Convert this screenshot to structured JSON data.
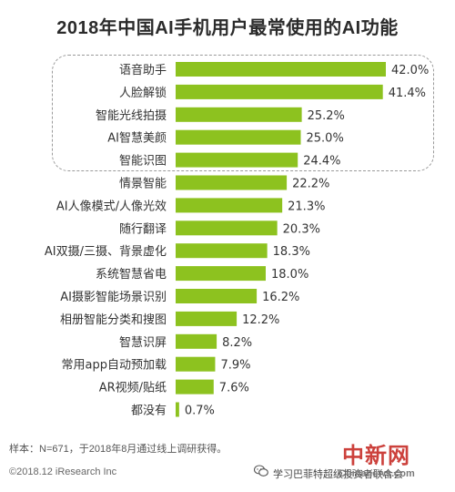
{
  "chart_data": {
    "type": "bar",
    "orientation": "horizontal",
    "title": "2018年中国AI手机用户最常使用的AI功能",
    "categories": [
      "语音助手",
      "人脸解锁",
      "智能光线拍摄",
      "AI智慧美颜",
      "智能识图",
      "情景智能",
      "AI人像模式/人像光效",
      "随行翻译",
      "AI双摄/三摄、背景虚化",
      "系统智慧省电",
      "AI摄影智能场景识别",
      "相册智能分类和搜图",
      "智慧识屏",
      "常用app自动预加载",
      "AR视频/贴纸",
      "都没有"
    ],
    "values": [
      42.0,
      41.4,
      25.2,
      25.0,
      24.4,
      22.2,
      21.3,
      20.3,
      18.3,
      18.0,
      16.2,
      12.2,
      8.2,
      7.9,
      7.6,
      0.7
    ],
    "value_labels": [
      "42.0%",
      "41.4%",
      "25.2%",
      "25.0%",
      "24.4%",
      "22.2%",
      "21.3%",
      "20.3%",
      "18.3%",
      "18.0%",
      "16.2%",
      "12.2%",
      "8.2%",
      "7.9%",
      "7.6%",
      "0.7%"
    ],
    "xlim": [
      0,
      50
    ],
    "highlighted_categories": [
      "语音助手",
      "人脸解锁",
      "智能光线拍摄",
      "AI智慧美颜",
      "智能识图"
    ],
    "bar_color": "#8dc21f",
    "grid": false
  },
  "notes": {
    "sample": "样本：N=671，于2018年8月通过线上调研获得。",
    "source": "©2018.12 iResearch Inc"
  },
  "watermarks": {
    "logo": "中新网",
    "url": "Chinanews.com",
    "wechat_account": "学习巴菲特超级投资者联合会",
    "wechat_icon": "wechat-icon"
  }
}
